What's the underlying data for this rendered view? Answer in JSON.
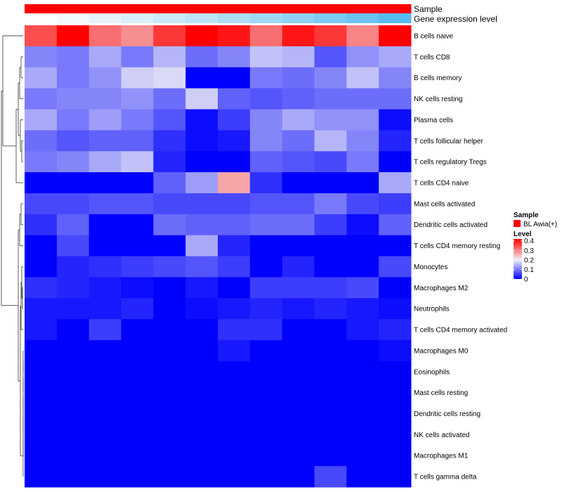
{
  "chart_data": {
    "type": "heatmap",
    "title": "",
    "rows": [
      "B cells naive",
      "T cells CD8",
      "B cells memory",
      "NK cells resting",
      "Plasma cells",
      "T cells follicular helper",
      "T cells regulatory  Tregs",
      "T cells CD4 naive",
      "Mast cells activated",
      "Dendritic cells activated",
      "T cells CD4 memory resting",
      "Monocytes",
      "Macrophages M2",
      "Neutrophils",
      "T cells CD4 memory activated",
      "Macrophages M0",
      "Eosinophils",
      "Mast cells resting",
      "Dendritic cells resting",
      "NK cells activated",
      "Macrophages M1",
      "T cells gamma delta"
    ],
    "n_columns": 12,
    "values": [
      [
        0.35,
        0.42,
        0.32,
        0.29,
        0.37,
        0.42,
        0.4,
        0.32,
        0.4,
        0.37,
        0.3,
        0.42
      ],
      [
        0.11,
        0.1,
        0.14,
        0.1,
        0.15,
        0.09,
        0.11,
        0.16,
        0.15,
        0.07,
        0.12,
        0.14
      ],
      [
        0.14,
        0.1,
        0.12,
        0.17,
        0.18,
        0.0,
        0.0,
        0.1,
        0.09,
        0.11,
        0.16,
        0.11
      ],
      [
        0.1,
        0.11,
        0.11,
        0.12,
        0.09,
        0.17,
        0.08,
        0.07,
        0.08,
        0.09,
        0.09,
        0.09
      ],
      [
        0.14,
        0.1,
        0.13,
        0.1,
        0.07,
        0.01,
        0.05,
        0.11,
        0.14,
        0.12,
        0.12,
        0.01
      ],
      [
        0.09,
        0.07,
        0.08,
        0.08,
        0.04,
        0.01,
        0.02,
        0.11,
        0.09,
        0.15,
        0.11,
        0.03
      ],
      [
        0.1,
        0.11,
        0.14,
        0.16,
        0.03,
        0.0,
        0.0,
        0.08,
        0.07,
        0.06,
        0.1,
        0.0
      ],
      [
        0.0,
        0.0,
        0.0,
        0.0,
        0.08,
        0.13,
        0.27,
        0.04,
        0.0,
        0.0,
        0.0,
        0.14
      ],
      [
        0.06,
        0.06,
        0.07,
        0.07,
        0.06,
        0.06,
        0.06,
        0.07,
        0.07,
        0.1,
        0.06,
        0.05
      ],
      [
        0.04,
        0.08,
        0.0,
        0.0,
        0.09,
        0.08,
        0.08,
        0.09,
        0.09,
        0.05,
        0.01,
        0.08
      ],
      [
        0.0,
        0.06,
        0.0,
        0.0,
        0.0,
        0.14,
        0.03,
        0.0,
        0.0,
        0.0,
        0.0,
        0.0
      ],
      [
        0.0,
        0.03,
        0.04,
        0.05,
        0.06,
        0.07,
        0.05,
        0.0,
        0.03,
        0.0,
        0.0,
        0.06
      ],
      [
        0.04,
        0.03,
        0.02,
        0.01,
        0.0,
        0.02,
        0.0,
        0.05,
        0.05,
        0.05,
        0.06,
        0.0
      ],
      [
        0.02,
        0.02,
        0.02,
        0.03,
        0.0,
        0.01,
        0.02,
        0.03,
        0.02,
        0.03,
        0.02,
        0.01
      ],
      [
        0.02,
        0.0,
        0.05,
        0.0,
        0.0,
        0.0,
        0.04,
        0.04,
        0.0,
        0.0,
        0.02,
        0.03
      ],
      [
        0.0,
        0.0,
        0.0,
        0.0,
        0.0,
        0.0,
        0.02,
        0.0,
        0.0,
        0.0,
        0.0,
        0.01
      ],
      [
        0,
        0,
        0,
        0,
        0,
        0,
        0,
        0,
        0,
        0,
        0,
        0
      ],
      [
        0,
        0,
        0,
        0,
        0,
        0,
        0,
        0,
        0,
        0,
        0,
        0
      ],
      [
        0,
        0,
        0,
        0,
        0,
        0,
        0,
        0,
        0,
        0,
        0,
        0
      ],
      [
        0,
        0,
        0,
        0,
        0,
        0,
        0,
        0,
        0,
        0,
        0,
        0
      ],
      [
        0,
        0,
        0,
        0,
        0,
        0,
        0,
        0,
        0,
        0,
        0,
        0
      ],
      [
        0.0,
        0.0,
        0.0,
        0.0,
        0.0,
        0.0,
        0.0,
        0.0,
        0.0,
        0.06,
        0.0,
        0.0
      ]
    ],
    "color_scale": {
      "min": 0,
      "max": 0.42,
      "stops": [
        {
          "v": 0,
          "color": "#0000ff"
        },
        {
          "v": 0.2,
          "color": "#f2f2f6"
        },
        {
          "v": 0.42,
          "color": "#ff0000"
        }
      ]
    },
    "column_annotations": [
      {
        "name": "Sample",
        "colors": [
          "#ff0000",
          "#ff0000",
          "#ff0000",
          "#ff0000",
          "#ff0000",
          "#ff0000",
          "#ff0000",
          "#ff0000",
          "#ff0000",
          "#ff0000",
          "#ff0000",
          "#ff0000"
        ]
      },
      {
        "name": "Gene expression level",
        "colors": [
          "#fcfdfe",
          "#f2f9fd",
          "#e6f4fb",
          "#d9eff9",
          "#cbe9f7",
          "#bde4f6",
          "#aedef5",
          "#9fd8f4",
          "#8ed1f3",
          "#7ccaf2",
          "#6ac3f1",
          "#56bbef"
        ]
      }
    ],
    "legend": {
      "sample": {
        "title": "Sample",
        "entries": [
          {
            "label": "BL Awia(+)",
            "color": "#ff0000"
          }
        ]
      },
      "level": {
        "title": "Level",
        "ticks": [
          "0.4",
          "0.3",
          "0.2",
          "0.1",
          "0"
        ],
        "tick_values": [
          0.4,
          0.3,
          0.2,
          0.1,
          0
        ]
      }
    },
    "row_dendrogram": true
  }
}
